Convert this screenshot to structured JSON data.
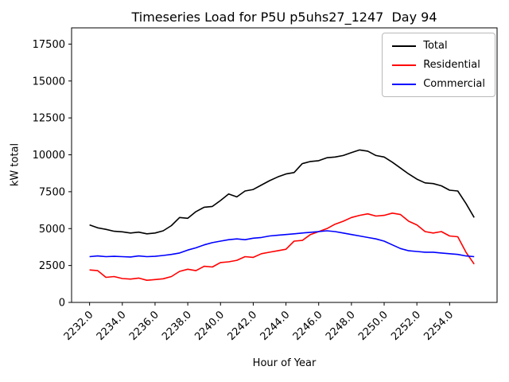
{
  "chart_data": {
    "type": "line",
    "title": "Timeseries Load for P5U p5uhs27_1247  Day 94",
    "xlabel": "Hour of Year",
    "ylabel": "kW total",
    "grid": false,
    "legend_position": "upper right",
    "xlim": [
      2230.9,
      2256.9
    ],
    "ylim": [
      0,
      18600
    ],
    "xticks": [
      2232,
      2234,
      2236,
      2238,
      2240,
      2242,
      2244,
      2246,
      2248,
      2250,
      2252,
      2254
    ],
    "xtick_labels": [
      "2232.0",
      "2234.0",
      "2236.0",
      "2238.0",
      "2240.0",
      "2242.0",
      "2244.0",
      "2246.0",
      "2248.0",
      "2250.0",
      "2252.0",
      "2254.0"
    ],
    "yticks": [
      0,
      2500,
      5000,
      7500,
      10000,
      12500,
      15000,
      17500
    ],
    "ytick_labels": [
      "0",
      "2500",
      "5000",
      "7500",
      "10000",
      "12500",
      "15000",
      "17500"
    ],
    "x": [
      2232.0,
      2232.5,
      2233.0,
      2233.5,
      2234.0,
      2234.5,
      2235.0,
      2235.5,
      2236.0,
      2236.5,
      2237.0,
      2237.5,
      2238.0,
      2238.5,
      2239.0,
      2239.5,
      2240.0,
      2240.5,
      2241.0,
      2241.5,
      2242.0,
      2242.5,
      2243.0,
      2243.5,
      2244.0,
      2244.5,
      2245.0,
      2245.5,
      2246.0,
      2246.5,
      2247.0,
      2247.5,
      2248.0,
      2248.5,
      2249.0,
      2249.5,
      2250.0,
      2250.5,
      2251.0,
      2251.5,
      2252.0,
      2252.5,
      2253.0,
      2253.5,
      2254.0,
      2254.5,
      2255.0,
      2255.5
    ],
    "series": [
      {
        "name": "Total",
        "color": "#000000",
        "values": [
          5250,
          5050,
          4950,
          4820,
          4780,
          4700,
          4760,
          4650,
          4700,
          4850,
          5200,
          5750,
          5700,
          6150,
          6450,
          6500,
          6900,
          7350,
          7150,
          7550,
          7650,
          7950,
          8250,
          8500,
          8700,
          8800,
          9400,
          9550,
          9600,
          9800,
          9850,
          9950,
          10150,
          10330,
          10250,
          9950,
          9850,
          9500,
          9100,
          8700,
          8350,
          8100,
          8050,
          7900,
          7600,
          7550,
          6700,
          5750
        ]
      },
      {
        "name": "Residential",
        "color": "#ff0000",
        "values": [
          2200,
          2150,
          1700,
          1750,
          1620,
          1580,
          1650,
          1500,
          1550,
          1600,
          1750,
          2100,
          2250,
          2150,
          2450,
          2400,
          2700,
          2750,
          2850,
          3100,
          3050,
          3300,
          3400,
          3500,
          3600,
          4150,
          4200,
          4600,
          4800,
          5000,
          5300,
          5500,
          5750,
          5900,
          6000,
          5850,
          5900,
          6050,
          5950,
          5500,
          5250,
          4800,
          4700,
          4800,
          4500,
          4450,
          3400,
          2600
        ]
      },
      {
        "name": "Commercial",
        "color": "#0000ff",
        "values": [
          3100,
          3150,
          3100,
          3120,
          3100,
          3080,
          3150,
          3100,
          3120,
          3180,
          3250,
          3350,
          3550,
          3700,
          3900,
          4050,
          4150,
          4250,
          4300,
          4250,
          4350,
          4400,
          4500,
          4550,
          4600,
          4650,
          4700,
          4750,
          4800,
          4850,
          4800,
          4700,
          4600,
          4500,
          4400,
          4300,
          4150,
          3900,
          3650,
          3500,
          3450,
          3400,
          3400,
          3350,
          3300,
          3250,
          3150,
          3100
        ]
      }
    ]
  }
}
